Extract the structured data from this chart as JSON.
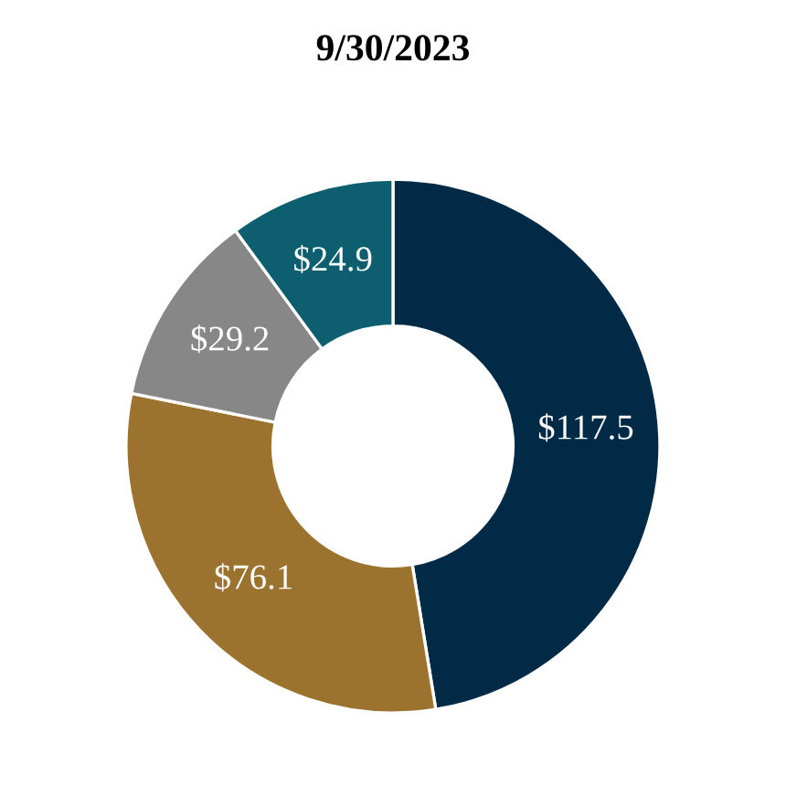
{
  "chart_data": {
    "type": "donut",
    "title": "9/30/2023",
    "categories": [
      null,
      null,
      null,
      null
    ],
    "values": [
      117.5,
      76.1,
      29.2,
      24.9
    ],
    "colors": [
      "#002a45",
      "#9b722e",
      "#878787",
      "#0d5e6f"
    ],
    "value_labels": [
      "$117.5",
      "$76.1",
      "$29.2",
      "$24.9"
    ],
    "legend": false
  }
}
